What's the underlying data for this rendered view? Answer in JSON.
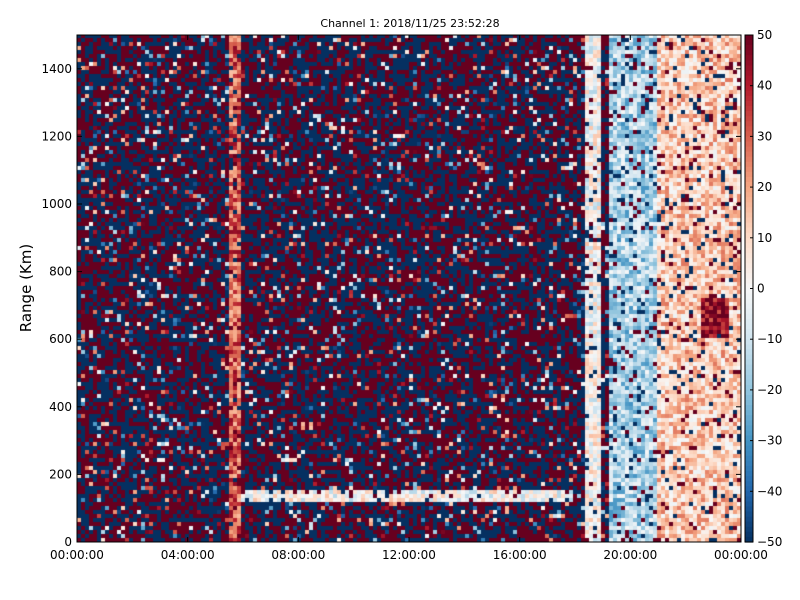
{
  "chart_data": {
    "type": "heatmap",
    "title": "Channel 1: 2018/11/25 23:52:28",
    "ylabel": "Range (Km)",
    "xlabel": "",
    "x_range": [
      "00:00:00",
      "24:00:00"
    ],
    "ylim": [
      0,
      1500
    ],
    "x_ticks": [
      "00:00:00",
      "04:00:00",
      "08:00:00",
      "12:00:00",
      "16:00:00",
      "20:00:00",
      "00:00:00"
    ],
    "y_ticks": [
      "0",
      "200",
      "400",
      "600",
      "800",
      "1000",
      "1200",
      "1400"
    ],
    "colorbar": {
      "min": -50,
      "max": 50,
      "ticks": [
        "50",
        "40",
        "30",
        "20",
        "10",
        "0",
        "−10",
        "−20",
        "−30",
        "−40",
        "−50"
      ],
      "colors": [
        "#053061",
        "#2166ac",
        "#4393c3",
        "#92c5de",
        "#d1e5f0",
        "#f7f7f7",
        "#fddbc7",
        "#f4a582",
        "#d6604d",
        "#b2182b",
        "#67001f"
      ]
    },
    "features": [
      {
        "x_from": "05:30",
        "x_to": "06:00",
        "range_from": 0,
        "range_to": 1500,
        "value": 30
      },
      {
        "x_from": "18:20",
        "x_to": "19:00",
        "range_from": 0,
        "range_to": 1500,
        "value": 0
      },
      {
        "x_from": "19:10",
        "x_to": "21:00",
        "range_from": 0,
        "range_to": 1500,
        "value": -15
      },
      {
        "x_from": "21:00",
        "x_to": "24:00",
        "range_from": 0,
        "range_to": 1500,
        "value": 12
      },
      {
        "x_from": "22:30",
        "x_to": "23:30",
        "range_from": 600,
        "range_to": 720,
        "value": 45
      },
      {
        "x_from": "06:00",
        "x_to": "18:00",
        "range_from": 120,
        "range_to": 150,
        "value": 0
      }
    ]
  }
}
